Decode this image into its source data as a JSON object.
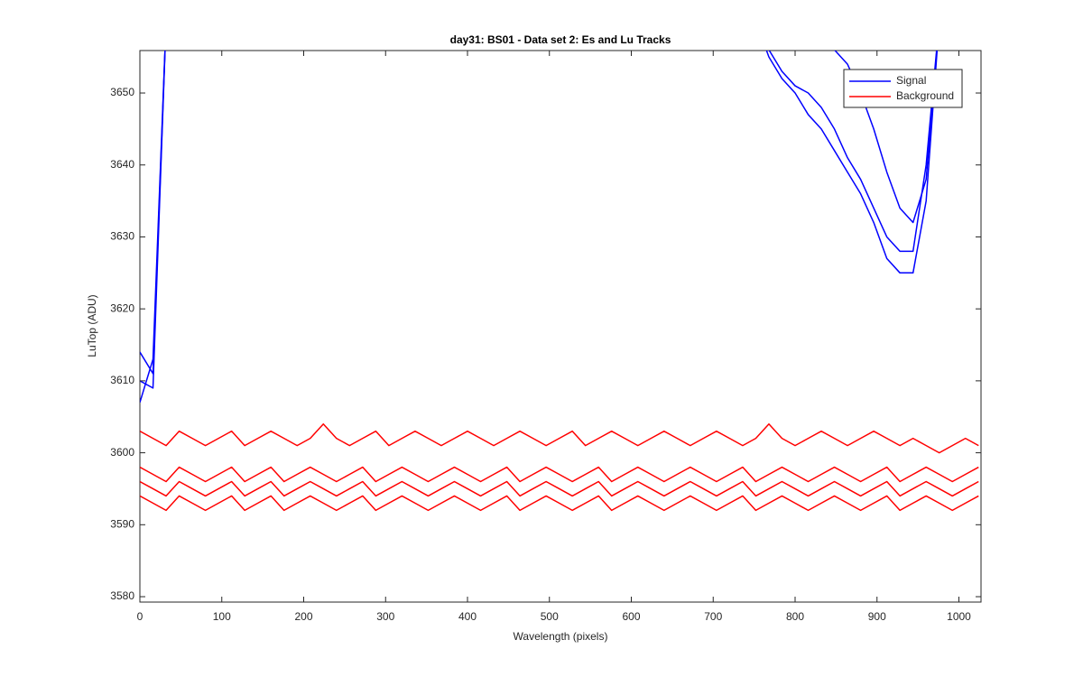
{
  "chart_data": {
    "type": "line",
    "title": "day31: BS01 - Data set 2: Es and Lu Tracks",
    "xlabel": "Wavelength (pixels)",
    "ylabel": "LuTop (ADU)",
    "xlim": [
      0,
      1027
    ],
    "ylim": [
      3579.25,
      3655.9
    ],
    "xticks": [
      0,
      100,
      200,
      300,
      400,
      500,
      600,
      700,
      800,
      900,
      1000
    ],
    "yticks": [
      3580,
      3590,
      3600,
      3610,
      3620,
      3630,
      3640,
      3650
    ],
    "grid": false,
    "legend": "top-right",
    "x": [
      0,
      16,
      32,
      48,
      64,
      80,
      96,
      112,
      128,
      144,
      160,
      176,
      192,
      208,
      224,
      240,
      256,
      272,
      288,
      304,
      320,
      336,
      352,
      368,
      384,
      400,
      416,
      432,
      448,
      464,
      480,
      496,
      512,
      528,
      544,
      560,
      576,
      592,
      608,
      624,
      640,
      656,
      672,
      688,
      704,
      720,
      736,
      752,
      768,
      784,
      800,
      816,
      832,
      848,
      864,
      880,
      896,
      912,
      928,
      944,
      960,
      976,
      992,
      1008,
      1024
    ],
    "series": [
      {
        "name": "Signal",
        "color": "#0000ff",
        "values": [
          3610,
          3609,
          3660,
          null,
          null,
          null,
          null,
          null,
          null,
          null,
          null,
          null,
          null,
          null,
          null,
          null,
          null,
          null,
          null,
          null,
          null,
          null,
          null,
          null,
          null,
          null,
          null,
          null,
          null,
          null,
          null,
          null,
          null,
          null,
          null,
          null,
          null,
          null,
          null,
          null,
          null,
          null,
          null,
          null,
          null,
          null,
          null,
          3660,
          3655,
          3652,
          3650,
          3647,
          3645,
          3642,
          3639,
          3636,
          3632,
          3627,
          3625,
          3625,
          3635,
          3660,
          null,
          null,
          null
        ]
      },
      {
        "name": "Signal",
        "color": "#0000ff",
        "values": [
          3614,
          3611,
          3660,
          null,
          null,
          null,
          null,
          null,
          null,
          null,
          null,
          null,
          null,
          null,
          null,
          null,
          null,
          null,
          null,
          null,
          null,
          null,
          null,
          null,
          null,
          null,
          null,
          null,
          null,
          null,
          null,
          null,
          null,
          null,
          null,
          null,
          null,
          null,
          null,
          null,
          null,
          null,
          null,
          null,
          null,
          null,
          null,
          3660,
          3656,
          3653,
          3651,
          3650,
          3648,
          3645,
          3641,
          3638,
          3634,
          3630,
          3628,
          3628,
          3640,
          3660,
          null,
          null,
          null
        ]
      },
      {
        "name": "Signal",
        "color": "#0000ff",
        "values": [
          3607,
          3613,
          3660,
          null,
          null,
          null,
          null,
          null,
          null,
          null,
          null,
          null,
          null,
          null,
          null,
          null,
          null,
          null,
          null,
          null,
          null,
          null,
          null,
          null,
          null,
          null,
          null,
          null,
          null,
          null,
          null,
          null,
          null,
          null,
          null,
          null,
          null,
          null,
          null,
          null,
          null,
          null,
          null,
          null,
          null,
          null,
          null,
          null,
          null,
          null,
          null,
          null,
          3660,
          3656,
          3654,
          3650,
          3645,
          3639,
          3634,
          3632,
          3638,
          3660,
          null,
          null,
          null
        ]
      },
      {
        "name": "Background",
        "color": "#ff0000",
        "values": [
          3603,
          3602,
          3601,
          3603,
          3602,
          3601,
          3602,
          3603,
          3601,
          3602,
          3603,
          3602,
          3601,
          3602,
          3604,
          3602,
          3601,
          3602,
          3603,
          3601,
          3602,
          3603,
          3602,
          3601,
          3602,
          3603,
          3602,
          3601,
          3602,
          3603,
          3602,
          3601,
          3602,
          3603,
          3601,
          3602,
          3603,
          3602,
          3601,
          3602,
          3603,
          3602,
          3601,
          3602,
          3603,
          3602,
          3601,
          3602,
          3604,
          3602,
          3601,
          3602,
          3603,
          3602,
          3601,
          3602,
          3603,
          3602,
          3601,
          3602,
          3601,
          3600,
          3601,
          3602,
          3601
        ]
      },
      {
        "name": "Background",
        "color": "#ff0000",
        "values": [
          3598,
          3597,
          3596,
          3598,
          3597,
          3596,
          3597,
          3598,
          3596,
          3597,
          3598,
          3596,
          3597,
          3598,
          3597,
          3596,
          3597,
          3598,
          3596,
          3597,
          3598,
          3597,
          3596,
          3597,
          3598,
          3597,
          3596,
          3597,
          3598,
          3596,
          3597,
          3598,
          3597,
          3596,
          3597,
          3598,
          3596,
          3597,
          3598,
          3597,
          3596,
          3597,
          3598,
          3597,
          3596,
          3597,
          3598,
          3596,
          3597,
          3598,
          3597,
          3596,
          3597,
          3598,
          3597,
          3596,
          3597,
          3598,
          3596,
          3597,
          3598,
          3597,
          3596,
          3597,
          3598
        ]
      },
      {
        "name": "Background",
        "color": "#ff0000",
        "values": [
          3596,
          3595,
          3594,
          3596,
          3595,
          3594,
          3595,
          3596,
          3594,
          3595,
          3596,
          3594,
          3595,
          3596,
          3595,
          3594,
          3595,
          3596,
          3594,
          3595,
          3596,
          3595,
          3594,
          3595,
          3596,
          3595,
          3594,
          3595,
          3596,
          3594,
          3595,
          3596,
          3595,
          3594,
          3595,
          3596,
          3594,
          3595,
          3596,
          3595,
          3594,
          3595,
          3596,
          3595,
          3594,
          3595,
          3596,
          3594,
          3595,
          3596,
          3595,
          3594,
          3595,
          3596,
          3595,
          3594,
          3595,
          3596,
          3594,
          3595,
          3596,
          3595,
          3594,
          3595,
          3596
        ]
      },
      {
        "name": "Background",
        "color": "#ff0000",
        "values": [
          3594,
          3593,
          3592,
          3594,
          3593,
          3592,
          3593,
          3594,
          3592,
          3593,
          3594,
          3592,
          3593,
          3594,
          3593,
          3592,
          3593,
          3594,
          3592,
          3593,
          3594,
          3593,
          3592,
          3593,
          3594,
          3593,
          3592,
          3593,
          3594,
          3592,
          3593,
          3594,
          3593,
          3592,
          3593,
          3594,
          3592,
          3593,
          3594,
          3593,
          3592,
          3593,
          3594,
          3593,
          3592,
          3593,
          3594,
          3592,
          3593,
          3594,
          3593,
          3592,
          3593,
          3594,
          3593,
          3592,
          3593,
          3594,
          3592,
          3593,
          3594,
          3593,
          3592,
          3593,
          3594
        ]
      }
    ]
  }
}
